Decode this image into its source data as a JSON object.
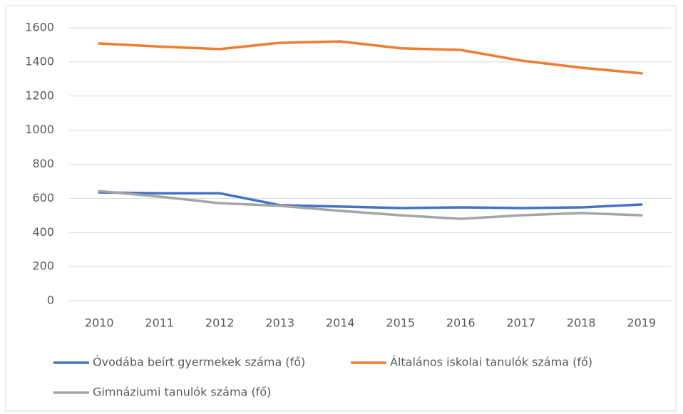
{
  "chart_data": {
    "type": "line",
    "categories": [
      "2010",
      "2011",
      "2012",
      "2013",
      "2014",
      "2015",
      "2016",
      "2017",
      "2018",
      "2019"
    ],
    "series": [
      {
        "name": "Óvodába beírt gyermekek száma (fő)",
        "color": "#4472c4",
        "values": [
          635,
          630,
          630,
          560,
          552,
          543,
          547,
          543,
          547,
          564
        ]
      },
      {
        "name": "Általános iskolai tanulók száma (fő)",
        "color": "#ed7d31",
        "values": [
          1508,
          1490,
          1475,
          1512,
          1520,
          1480,
          1470,
          1408,
          1366,
          1333
        ]
      },
      {
        "name": "Gimnáziumi tanulók száma (fő)",
        "color": "#a5a5a5",
        "values": [
          643,
          610,
          572,
          556,
          527,
          501,
          480,
          501,
          514,
          501
        ]
      }
    ],
    "ylim": [
      0,
      1600
    ],
    "yticks": [
      0,
      200,
      400,
      600,
      800,
      1000,
      1200,
      1400,
      1600
    ],
    "grid": true
  }
}
